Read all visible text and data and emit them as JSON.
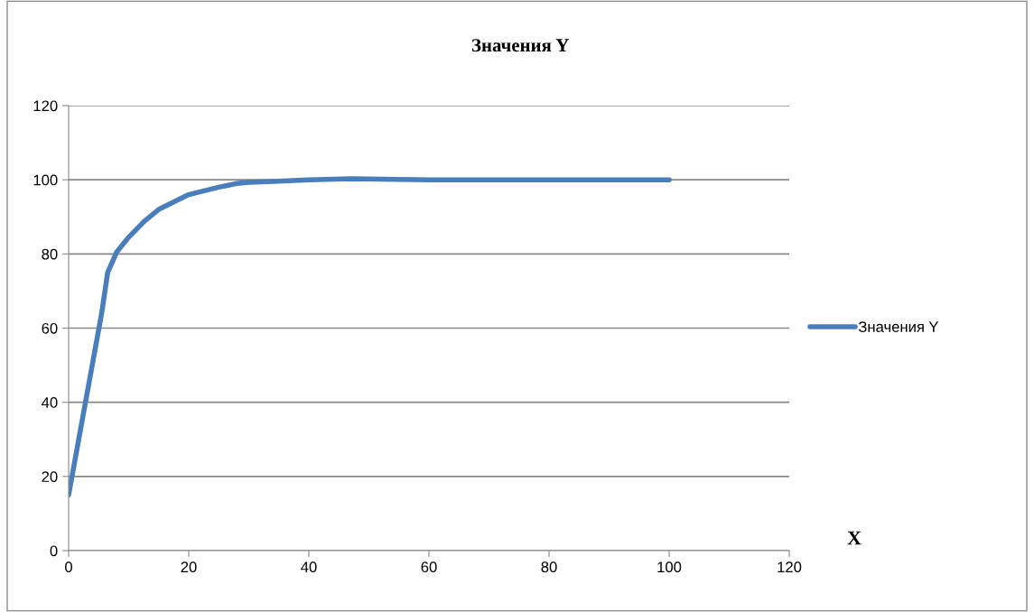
{
  "chart_data": {
    "type": "line",
    "title": "Значения Y",
    "xlabel": "X",
    "x": [
      0,
      5.5,
      6.5,
      8,
      10,
      12.6,
      15,
      20,
      25,
      28,
      30,
      35,
      40,
      47,
      60,
      80,
      100
    ],
    "series": [
      {
        "name": "Значения Y",
        "color": "#4a7ebb",
        "values": [
          15,
          64,
          75,
          80.5,
          84.5,
          88.8,
          92,
          96,
          98,
          99,
          99.3,
          99.6,
          100,
          100.3,
          100,
          100,
          100
        ]
      }
    ],
    "xlim": [
      0,
      120
    ],
    "xticks": [
      0,
      20,
      40,
      60,
      80,
      100,
      120
    ],
    "ylim": [
      0,
      120
    ],
    "yticks": [
      0,
      20,
      40,
      60,
      80,
      100,
      120
    ],
    "grid": "y",
    "legend": "right",
    "marker": "none",
    "line_style": "solid"
  }
}
